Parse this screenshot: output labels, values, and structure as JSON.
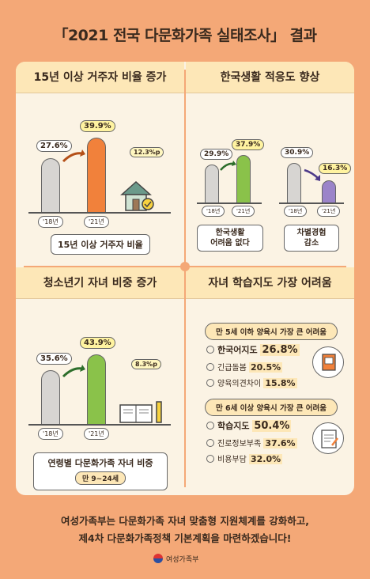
{
  "title": "「2021 전국 다문화가족 실태조사」 결과",
  "panels": {
    "residence": {
      "heading": "15년 이상 거주자 비율 증가",
      "old_value": "27.6%",
      "new_value": "39.9%",
      "delta": "12.3%p",
      "old_year": "'18년",
      "new_year": "'21년",
      "caption": "15년 이상 거주자 비율"
    },
    "adaptation": {
      "heading": "한국생활 적응도 향상",
      "group1": {
        "old_value": "29.9%",
        "new_value": "37.9%",
        "old_year": "'18년",
        "new_year": "'21년",
        "caption_line1": "한국생활",
        "caption_line2": "어려움 없다"
      },
      "group2": {
        "old_value": "30.9%",
        "new_value": "16.3%",
        "old_year": "'18년",
        "new_year": "'21년",
        "caption_line1": "차별경험",
        "caption_line2": "감소"
      }
    },
    "youth": {
      "heading": "청소년기 자녀 비중 증가",
      "old_value": "35.6%",
      "new_value": "43.9%",
      "delta": "8.3%p",
      "old_year": "'18년",
      "new_year": "'21년",
      "caption": "연령별 다문화가족 자녀 비중",
      "subcaption": "만 9~24세"
    },
    "learning": {
      "heading": "자녀 학습지도 가장 어려움",
      "under5": {
        "header": "만 5세 이하 양육시 가장 큰 어려움",
        "items": [
          {
            "label": "한국어지도",
            "value": "26.8%"
          },
          {
            "label": "긴급돌봄",
            "value": "20.5%"
          },
          {
            "label": "양육의견차이",
            "value": "15.8%"
          }
        ]
      },
      "over6": {
        "header": "만 6세 이상 양육시 가장 큰 어려움",
        "items": [
          {
            "label": "학습지도",
            "value": "50.4%"
          },
          {
            "label": "진로정보부족",
            "value": "37.6%"
          },
          {
            "label": "비용부담",
            "value": "32.0%"
          }
        ]
      }
    }
  },
  "footer": {
    "line1": "여성가족부는 다문화가족 자녀 맞춤형 지원체계를 강화하고,",
    "line2": "제4차 다문화가족정책 기본계획을 마련하겠습니다!"
  },
  "logo_text": "여성가족부",
  "colors": {
    "background": "#f4a877",
    "panel": "#fbf3e4",
    "heading_band": "#fde7b7",
    "orange": "#f1813b",
    "green": "#8ac24a",
    "blue": "#78b3e1",
    "purple": "#9b84c9",
    "old_bar": "#d7d5d2"
  }
}
